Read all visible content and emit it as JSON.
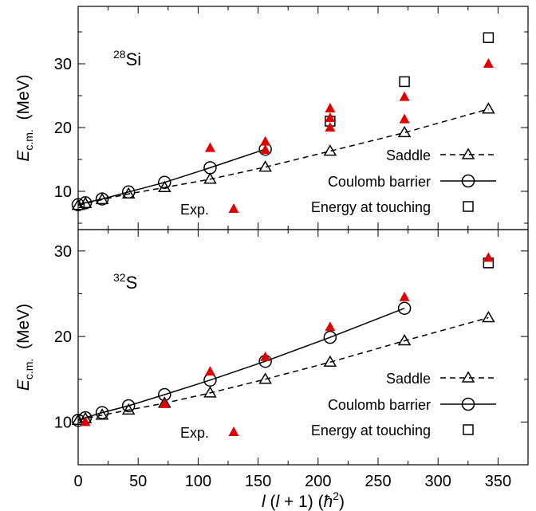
{
  "chart_data": [
    {
      "type": "scatter",
      "nucleus": {
        "mass": "28",
        "symbol": "Si"
      },
      "ylabel": {
        "main": "E",
        "sub": "c.m.",
        "unit": "(MeV)"
      },
      "xlim": [
        0,
        375
      ],
      "ylim": [
        4,
        39
      ],
      "yticks": [
        10,
        20,
        30
      ],
      "series": [
        {
          "name": "Saddle",
          "style": "dashed-triangle",
          "x": [
            0,
            6,
            20,
            42,
            72,
            110,
            156,
            210,
            272,
            342
          ],
          "y": [
            7.8,
            8.1,
            8.7,
            9.6,
            10.6,
            11.9,
            13.8,
            16.3,
            19.2,
            22.9
          ]
        },
        {
          "name": "Coulomb barrier",
          "style": "solid-circle",
          "x": [
            0,
            6,
            20,
            42,
            72,
            110,
            156
          ],
          "y": [
            7.9,
            8.2,
            8.8,
            9.9,
            11.4,
            13.7,
            16.6
          ]
        },
        {
          "name": "Energy at touching",
          "style": "square",
          "x": [
            210,
            272,
            342
          ],
          "y": [
            21.0,
            27.2,
            34.1
          ]
        },
        {
          "name": "Exp.",
          "style": "red-triangle",
          "x": [
            110,
            156,
            156,
            210,
            210,
            210,
            272,
            272,
            342
          ],
          "y": [
            16.8,
            17.8,
            16.5,
            23.0,
            20.0,
            21.5,
            24.8,
            21.3,
            30.0
          ]
        }
      ]
    },
    {
      "type": "scatter",
      "nucleus": {
        "mass": "32",
        "symbol": "S"
      },
      "ylabel": {
        "main": "E",
        "sub": "c.m.",
        "unit": "(MeV)"
      },
      "xlim": [
        0,
        375
      ],
      "ylim": [
        5,
        32.5
      ],
      "yticks": [
        10,
        20,
        30
      ],
      "series": [
        {
          "name": "Saddle",
          "style": "dashed-triangle",
          "x": [
            0,
            6,
            20,
            42,
            72,
            110,
            156,
            210,
            272,
            342
          ],
          "y": [
            10.2,
            10.4,
            10.8,
            11.4,
            12.2,
            13.4,
            15.0,
            17.0,
            19.5,
            22.2
          ]
        },
        {
          "name": "Coulomb barrier",
          "style": "solid-circle",
          "x": [
            0,
            6,
            20,
            42,
            72,
            110,
            156,
            210,
            272
          ],
          "y": [
            10.2,
            10.5,
            11.1,
            11.9,
            13.2,
            14.9,
            17.1,
            19.9,
            23.3
          ]
        },
        {
          "name": "Energy at touching",
          "style": "square",
          "x": [
            342
          ],
          "y": [
            28.6
          ]
        },
        {
          "name": "Exp.",
          "style": "red-triangle",
          "x": [
            6,
            72,
            110,
            156,
            210,
            272,
            342
          ],
          "y": [
            10.0,
            12.1,
            15.9,
            17.6,
            21.1,
            24.6,
            29.2
          ]
        }
      ]
    }
  ],
  "xaxis": {
    "ticks": [
      0,
      50,
      100,
      150,
      200,
      250,
      300,
      350
    ],
    "label": {
      "l": "l",
      "mid": " (",
      "l2": "l",
      "tail": " + 1) (",
      "hbar": "ħ",
      "sup": "2",
      "close": ")"
    }
  },
  "legend": {
    "saddle": "Saddle",
    "coulomb": "Coulomb barrier",
    "touching": "Energy at touching",
    "exp": "Exp."
  },
  "colors": {
    "exp": "#e00000",
    "line": "#000000"
  }
}
